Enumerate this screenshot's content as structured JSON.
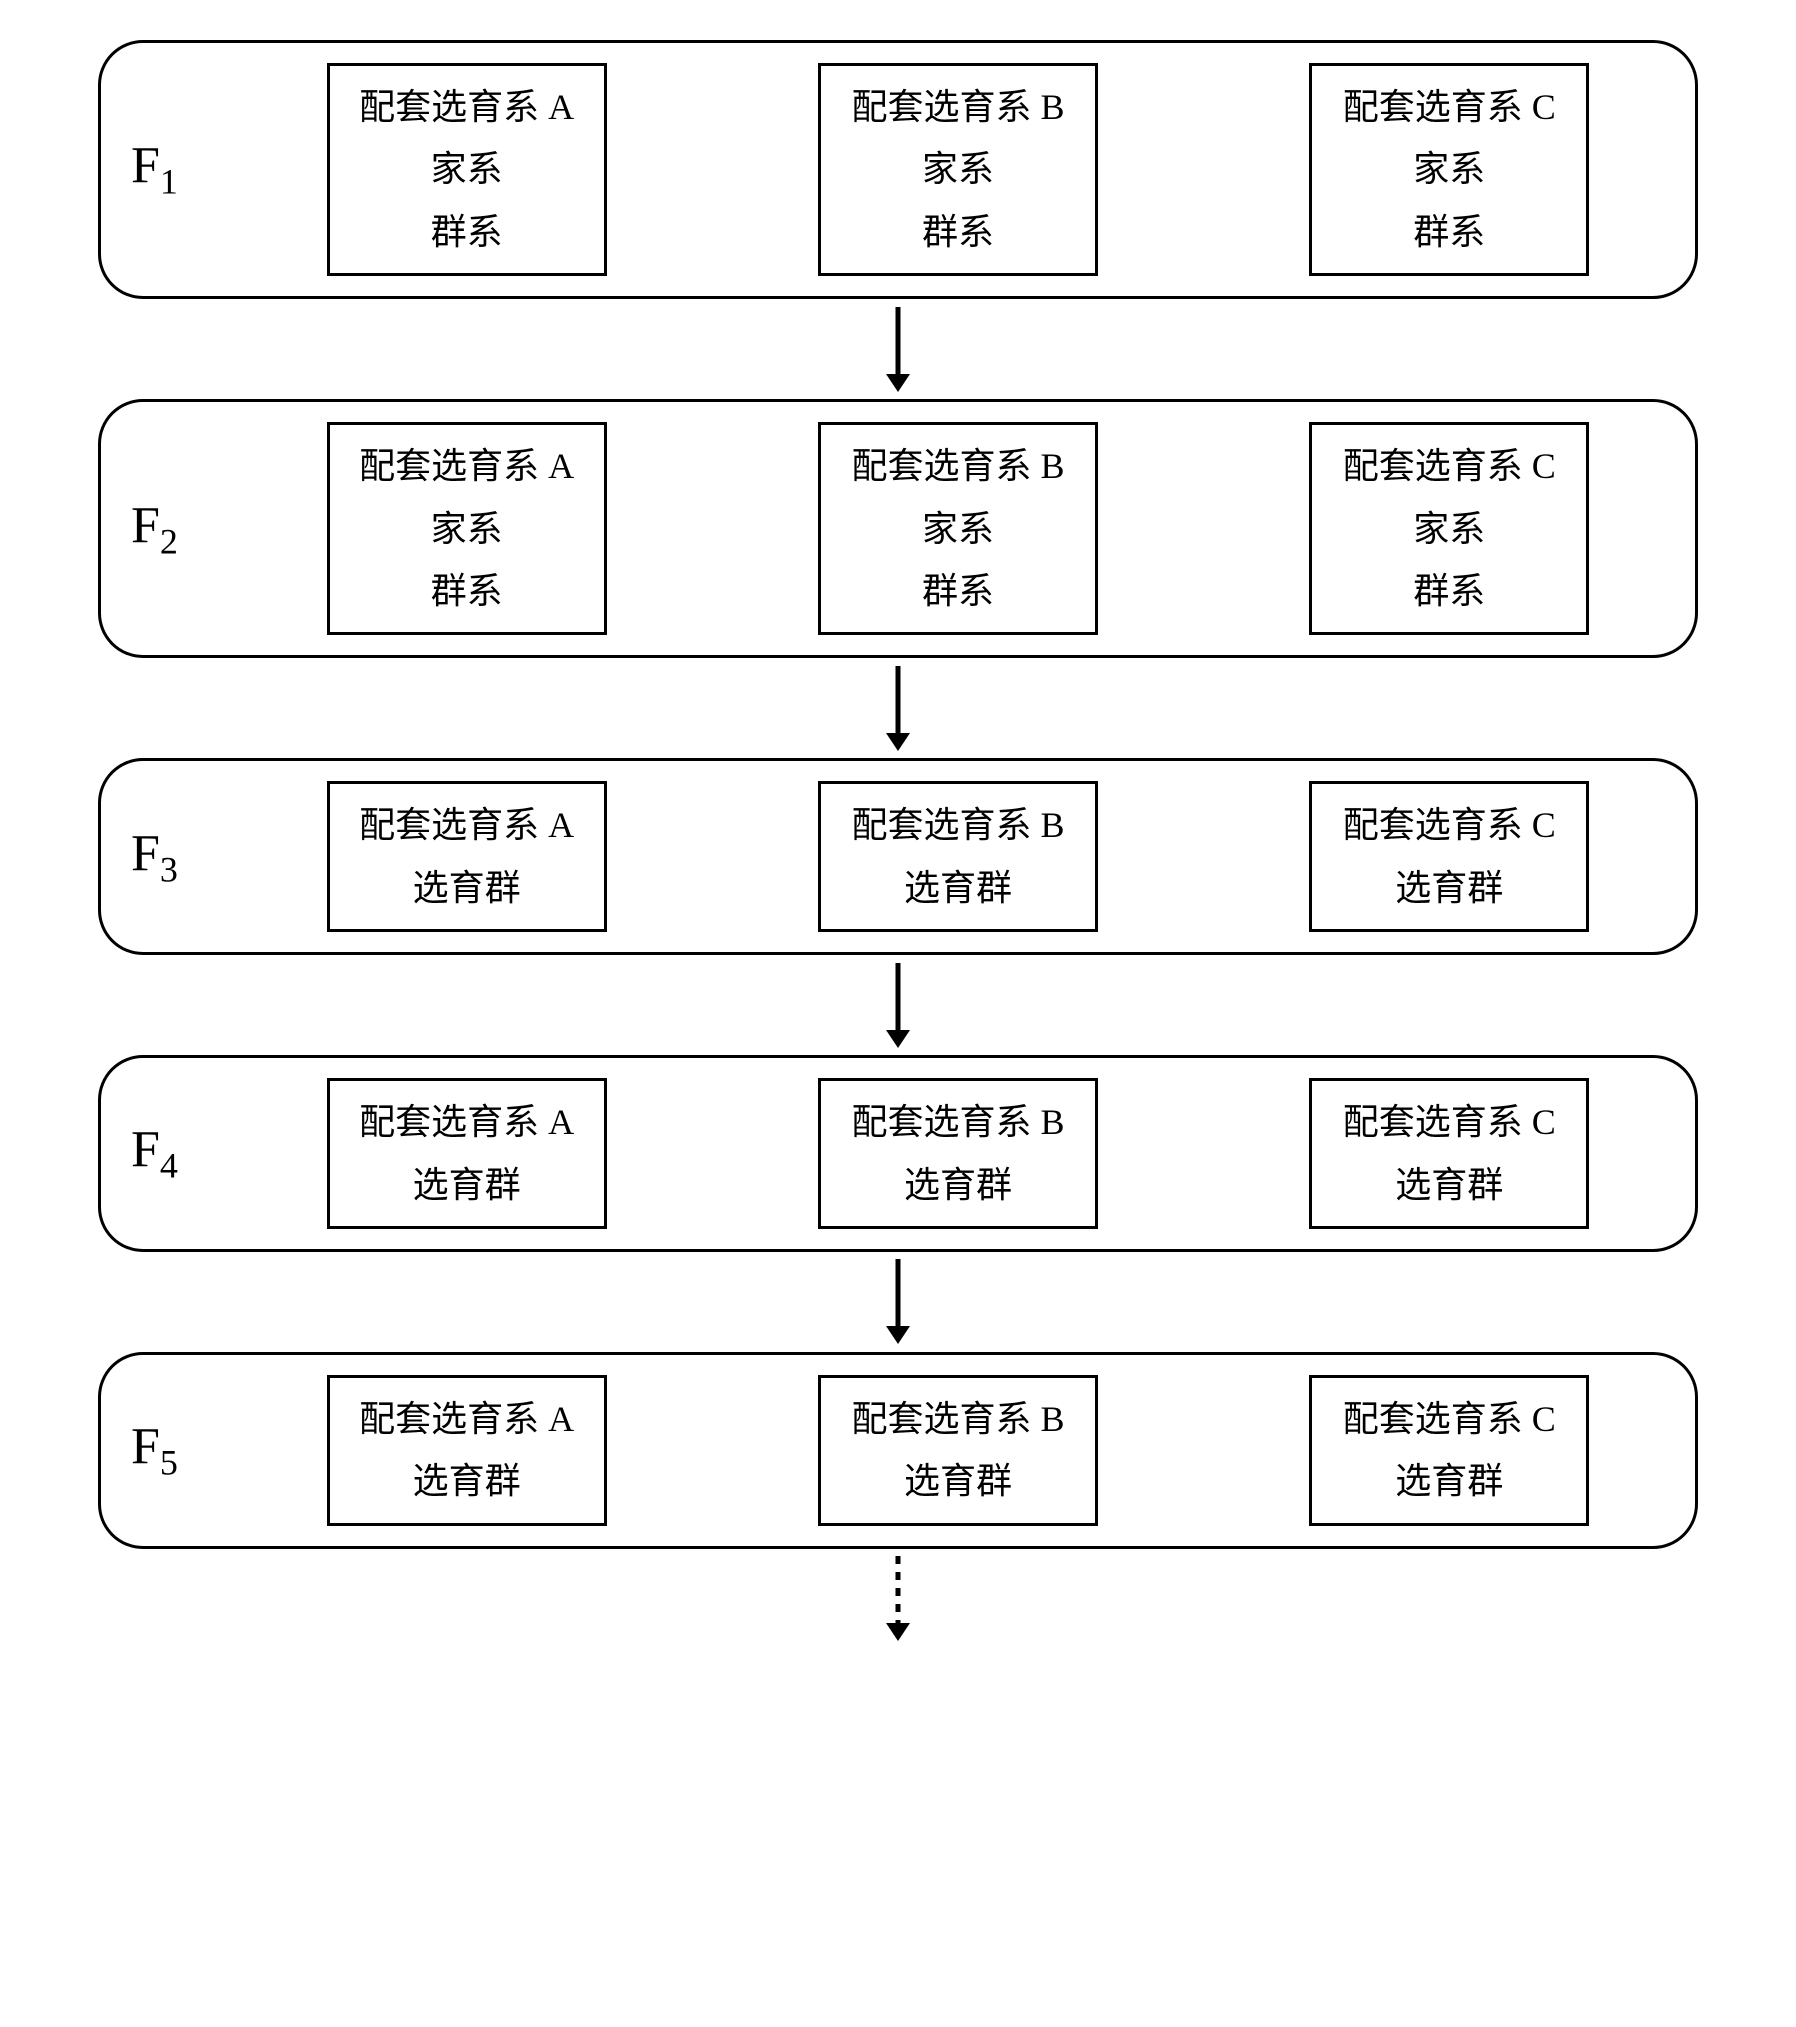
{
  "diagram": {
    "type": "flowchart",
    "background_color": "#ffffff",
    "border_color": "#000000",
    "border_width": 3,
    "row_border_radius": 45,
    "row_width": 1600,
    "label_font_family": "Times New Roman",
    "label_font_size": 52,
    "label_sub_font_size": 36,
    "box_font_size": 36,
    "box_font_family": "SimSun",
    "arrow_color": "#000000",
    "arrow_length": 85,
    "arrow_stroke_width": 5,
    "dashed_arrow_dash": "8,8",
    "generations": [
      {
        "label_main": "F",
        "label_sub": "1",
        "boxes": [
          {
            "lines": [
              "配套选育系 A",
              "家系",
              "群系"
            ]
          },
          {
            "lines": [
              "配套选育系 B",
              "家系",
              "群系"
            ]
          },
          {
            "lines": [
              "配套选育系 C",
              "家系",
              "群系"
            ]
          }
        ],
        "arrow_after": "solid"
      },
      {
        "label_main": "F",
        "label_sub": "2",
        "boxes": [
          {
            "lines": [
              "配套选育系 A",
              "家系",
              "群系"
            ]
          },
          {
            "lines": [
              "配套选育系 B",
              "家系",
              "群系"
            ]
          },
          {
            "lines": [
              "配套选育系 C",
              "家系",
              "群系"
            ]
          }
        ],
        "arrow_after": "solid"
      },
      {
        "label_main": "F",
        "label_sub": "3",
        "boxes": [
          {
            "lines": [
              "配套选育系 A",
              "选育群"
            ]
          },
          {
            "lines": [
              "配套选育系 B",
              "选育群"
            ]
          },
          {
            "lines": [
              "配套选育系 C",
              "选育群"
            ]
          }
        ],
        "arrow_after": "solid"
      },
      {
        "label_main": "F",
        "label_sub": "4",
        "boxes": [
          {
            "lines": [
              "配套选育系 A",
              "选育群"
            ]
          },
          {
            "lines": [
              "配套选育系 B",
              "选育群"
            ]
          },
          {
            "lines": [
              "配套选育系 C",
              "选育群"
            ]
          }
        ],
        "arrow_after": "solid"
      },
      {
        "label_main": "F",
        "label_sub": "5",
        "boxes": [
          {
            "lines": [
              "配套选育系 A",
              "选育群"
            ]
          },
          {
            "lines": [
              "配套选育系 B",
              "选育群"
            ]
          },
          {
            "lines": [
              "配套选育系 C",
              "选育群"
            ]
          }
        ],
        "arrow_after": "dashed"
      }
    ]
  }
}
